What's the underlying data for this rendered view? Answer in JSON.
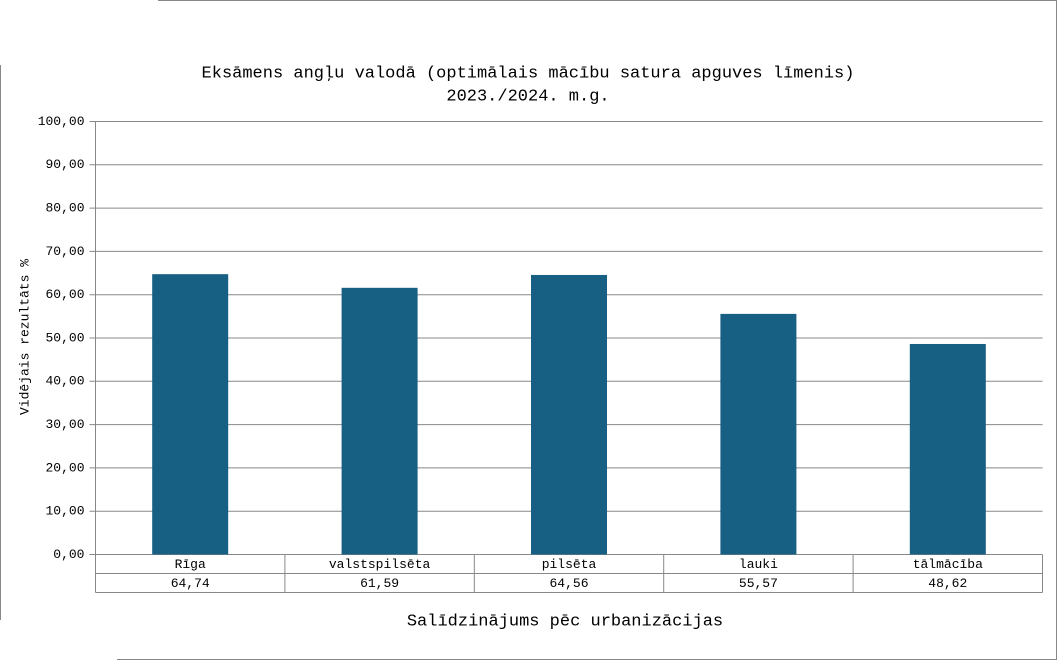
{
  "chart_data": {
    "type": "bar",
    "title": "Eksāmens angļu valodā (optimālais mācību satura apguves līmenis)",
    "subtitle": "2023./2024. m.g.",
    "y_label": "Vidējais rezultāts %",
    "x_label": "Salīdzinājums pēc urbanizācijas",
    "categories": [
      "Rīga",
      "valstspilsēta",
      "pilsēta",
      "lauki",
      "tālmācība"
    ],
    "values": [
      64.74,
      61.59,
      64.56,
      55.57,
      48.62
    ],
    "value_labels": [
      "64,74",
      "61,59",
      "64,56",
      "55,57",
      "48,62"
    ],
    "color": "#175f83",
    "ylim": [
      0,
      100
    ],
    "yticks": [
      {
        "value": 0,
        "label": "0,00"
      },
      {
        "value": 10,
        "label": "10,00"
      },
      {
        "value": 20,
        "label": "20,00"
      },
      {
        "value": 30,
        "label": "30,00"
      },
      {
        "value": 40,
        "label": "40,00"
      },
      {
        "value": 50,
        "label": "50,00"
      },
      {
        "value": 60,
        "label": "60,00"
      },
      {
        "value": 70,
        "label": "70,00"
      },
      {
        "value": 80,
        "label": "80,00"
      },
      {
        "value": 90,
        "label": "90,00"
      },
      {
        "value": 100,
        "label": "100,00"
      }
    ],
    "grid": true
  }
}
